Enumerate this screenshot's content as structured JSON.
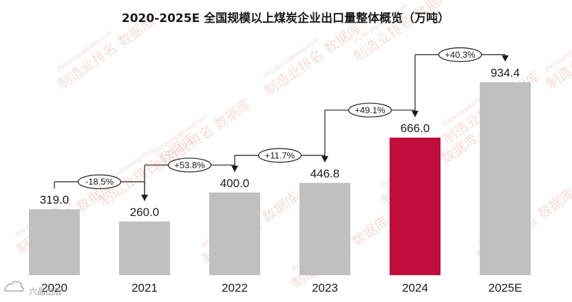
{
  "chart_data": {
    "type": "bar",
    "title": "2020-2025E 全国规模以上煤炭企业出口量整体概览（万吨）",
    "categories": [
      "2020",
      "2021",
      "2022",
      "2023",
      "2024",
      "2025E"
    ],
    "values": [
      319.0,
      260.0,
      400.0,
      446.8,
      666.0,
      934.4
    ],
    "value_labels": [
      "319.0",
      "260.0",
      "400.0",
      "446.8",
      "666.0",
      "934.4"
    ],
    "growth_labels": [
      "-18.5%",
      "+53.8%",
      "+11.7%",
      "+49.1%",
      "+40.3%"
    ],
    "highlight_index": 4,
    "colors": {
      "bar": "#c0c0c0",
      "highlight": "#c00d3c",
      "arrow": "#1a1a1a"
    },
    "ylim": [
      0,
      1000
    ],
    "grid": false,
    "legend": "none"
  },
  "watermark": {
    "text": "制造业排名 数据库",
    "url": "zhizaoyepaiming.com"
  },
  "logo": {
    "icon": "cloud-logo-icon",
    "text": "六晶出版"
  }
}
